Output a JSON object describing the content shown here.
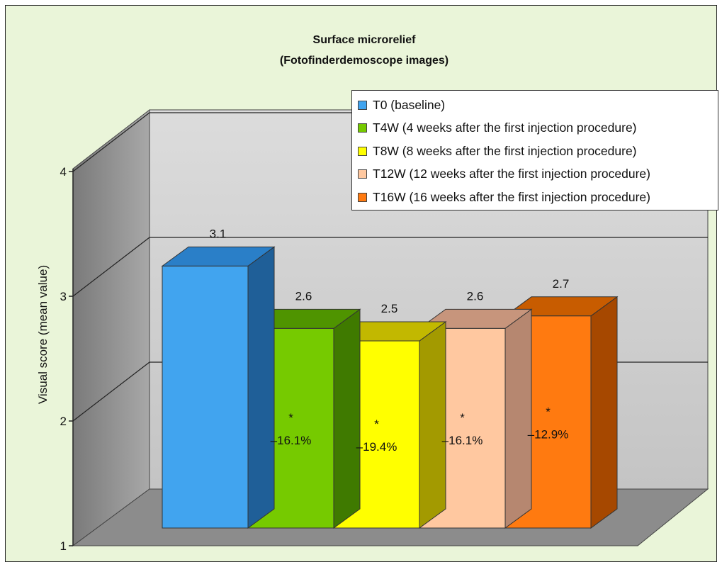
{
  "chart_data": {
    "type": "bar",
    "title": "Surface microrelief",
    "subtitle": "(Fotofinderdemoscope images)",
    "ylabel": "Visual score (mean value)",
    "xlabel": "",
    "ylim": [
      1,
      4
    ],
    "yticks": [
      "1",
      "2",
      "3",
      "4"
    ],
    "grid": true,
    "legend_position": "top-right",
    "categories": [
      "T0",
      "T4W",
      "T8W",
      "T12W",
      "T16W"
    ],
    "values": [
      3.1,
      2.6,
      2.5,
      2.6,
      2.7
    ],
    "value_labels": [
      "3.1",
      "2.6",
      "2.5",
      "2.6",
      "2.7"
    ],
    "change_labels": [
      "",
      "–16.1%",
      "–19.4%",
      "–16.1%",
      "–12.9%"
    ],
    "significance_labels": [
      "",
      "*",
      "*",
      "*",
      "*"
    ],
    "legend": [
      "T0 (baseline)",
      "T4W (4 weeks after the first injection procedure)",
      "T8W (8 weeks after the first injection procedure)",
      "T12W (12 weeks after the first injection procedure)",
      "T16W (16 weeks after the first injection procedure)"
    ],
    "colors": {
      "front": [
        "#41a4ef",
        "#76ca00",
        "#ffff00",
        "#ffc8a0",
        "#ff7a10"
      ],
      "top": [
        "#2a7fc8",
        "#4f9400",
        "#c2b800",
        "#c7957c",
        "#c85c00"
      ],
      "side": [
        "#1f5f98",
        "#3f7a00",
        "#a39a00",
        "#b68770",
        "#a64800"
      ]
    }
  }
}
